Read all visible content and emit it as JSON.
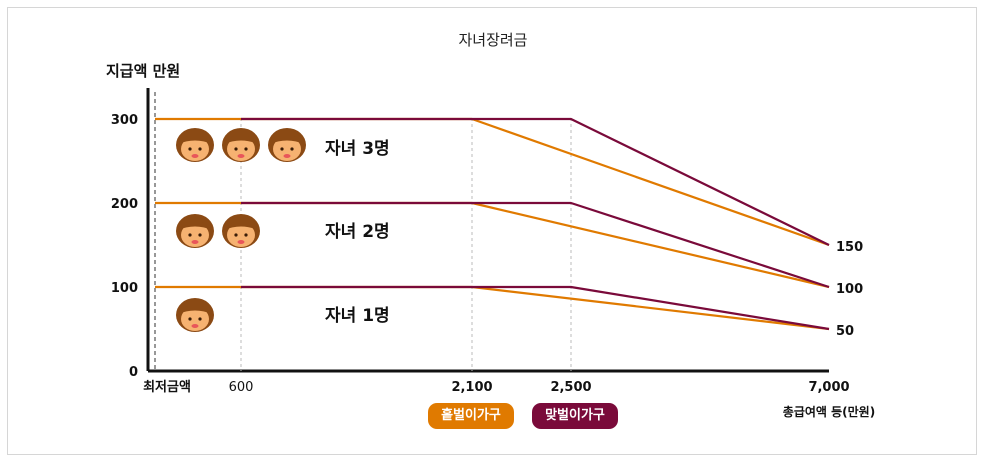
{
  "chart_data": {
    "type": "line",
    "title": "자녀장려금",
    "ylabel": "지급액 만원",
    "xlabel": "총급여액 등(만원)",
    "y_ticks": [
      "0",
      "100",
      "200",
      "300"
    ],
    "x_tick_labels": [
      "최저금액",
      "600",
      "2,100",
      "2,500",
      "7,000"
    ],
    "right_labels": [
      "150",
      "100",
      "50"
    ],
    "groups": [
      {
        "label": "자녀 3명",
        "children": 3
      },
      {
        "label": "자녀 2명",
        "children": 2
      },
      {
        "label": "자녀 1명",
        "children": 1
      }
    ],
    "series": [
      {
        "name": "홑벌이가구",
        "color": "#e07a00",
        "lines": [
          {
            "x": [
              0,
              2100,
              7000
            ],
            "y": [
              300,
              300,
              150
            ]
          },
          {
            "x": [
              0,
              2100,
              7000
            ],
            "y": [
              200,
              200,
              100
            ]
          },
          {
            "x": [
              0,
              2100,
              7000
            ],
            "y": [
              100,
              100,
              50
            ]
          }
        ]
      },
      {
        "name": "맞벌이가구",
        "color": "#7a0a3a",
        "lines": [
          {
            "x": [
              600,
              2500,
              7000
            ],
            "y": [
              300,
              300,
              150
            ]
          },
          {
            "x": [
              600,
              2500,
              7000
            ],
            "y": [
              200,
              200,
              100
            ]
          },
          {
            "x": [
              600,
              2500,
              7000
            ],
            "y": [
              100,
              100,
              50
            ]
          }
        ]
      }
    ],
    "ylim": [
      0,
      300
    ],
    "grid": "vertical dashed guides at 600, 2,100, 2,500"
  }
}
